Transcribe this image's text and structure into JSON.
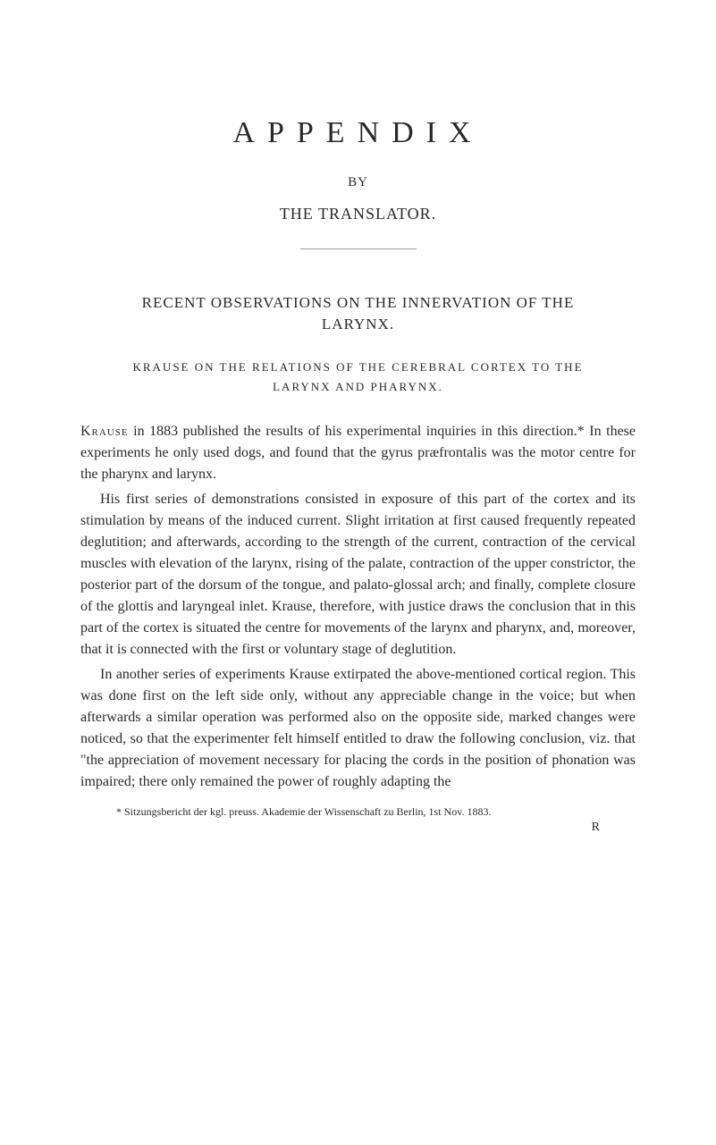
{
  "header": {
    "title": "APPENDIX",
    "by": "BY",
    "translator": "THE TRANSLATOR."
  },
  "section": {
    "heading_line1": "RECENT OBSERVATIONS ON THE INNERVATION OF THE",
    "heading_line2": "LARYNX.",
    "subheading_line1": "KRAUSE ON THE RELATIONS OF THE CEREBRAL CORTEX TO THE",
    "subheading_line2": "LARYNX AND PHARYNX."
  },
  "body": {
    "p1_caps": "Krause",
    "p1_rest": " in 1883 published the results of his experimental inquiries in this direction.* In these experiments he only used dogs, and found that the gyrus præfrontalis was the motor centre for the pharynx and larynx.",
    "p2": "His first series of demonstrations consisted in exposure of this part of the cortex and its stimulation by means of the induced current. Slight irritation at first caused frequently repeated deglutition; and afterwards, according to the strength of the current, contraction of the cervical muscles with elevation of the larynx, rising of the palate, contraction of the upper constrictor, the posterior part of the dorsum of the tongue, and palato-glossal arch; and finally, complete closure of the glottis and laryngeal inlet. Krause, therefore, with justice draws the conclusion that in this part of the cortex is situated the centre for movements of the larynx and pharynx, and, moreover, that it is connected with the first or voluntary stage of deglutition.",
    "p3": "In another series of experiments Krause extirpated the above-mentioned cortical region. This was done first on the left side only, without any appreciable change in the voice; but when afterwards a similar operation was performed also on the opposite side, marked changes were noticed, so that the experimenter felt himself entitled to draw the following conclusion, viz. that \"the appreciation of movement necessary for placing the cords in the position of phonation was impaired; there only remained the power of roughly adapting the"
  },
  "footnote": "* Sitzungsbericht der kgl. preuss. Akademie der Wissenschaft zu Berlin, 1st Nov. 1883.",
  "page_letter": "R",
  "styles": {
    "page_bg": "#ffffff",
    "text_color": "#2a2a2a",
    "divider_color": "#999999"
  }
}
